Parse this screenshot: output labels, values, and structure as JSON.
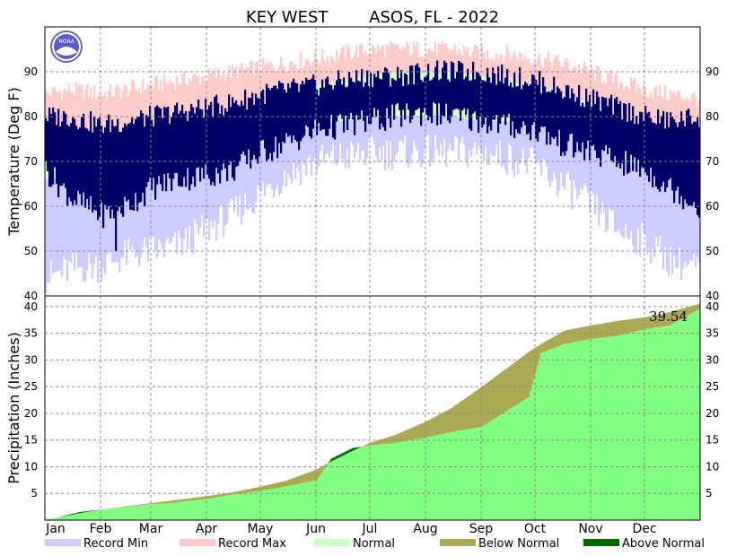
{
  "chart_data": {
    "type": "area",
    "title": "KEY WEST        ASOS, FL - 2022",
    "months": [
      "Jan",
      "Feb",
      "Mar",
      "Apr",
      "May",
      "Jun",
      "Jul",
      "Aug",
      "Sep",
      "Oct",
      "Nov",
      "Dec"
    ],
    "legend": {
      "record_min": "Record Min",
      "record_max": "Record Max",
      "normal": "Normal",
      "below_normal": "Below Normal",
      "above_normal": "Above Normal"
    },
    "legend_placement": "bottom",
    "grid": true,
    "colors": {
      "record_min": "#ccccff",
      "record_max": "#ffcccc",
      "normal": "#ccffcc",
      "observed": "#000066",
      "below_normal": "#aaaa55",
      "above_normal": "#006600",
      "precip_observed": "#80ff80"
    },
    "temperature": {
      "ylabel": "Temperature (Deg F)",
      "ylim": [
        40,
        100
      ],
      "yticks": [
        40,
        50,
        60,
        70,
        80,
        90
      ],
      "day_of_year": [
        1,
        15,
        32,
        46,
        60,
        74,
        91,
        105,
        121,
        135,
        152,
        166,
        182,
        196,
        213,
        227,
        244,
        258,
        274,
        288,
        305,
        319,
        335,
        349,
        365
      ],
      "record_max": [
        85,
        86,
        85,
        86,
        87,
        88,
        89,
        90,
        91,
        92,
        93,
        94,
        95,
        95,
        95,
        95,
        94,
        94,
        93,
        92,
        90,
        88,
        86,
        85,
        84
      ],
      "record_min": [
        44,
        46,
        47,
        49,
        50,
        51,
        55,
        58,
        63,
        67,
        70,
        71,
        72,
        72,
        72,
        72,
        72,
        71,
        69,
        65,
        60,
        55,
        52,
        48,
        46
      ],
      "normal_high": [
        75,
        76,
        76,
        77,
        77,
        78,
        80,
        81,
        83,
        85,
        87,
        88,
        89,
        90,
        90,
        90,
        89,
        88,
        87,
        85,
        83,
        80,
        78,
        76,
        75
      ],
      "normal_low": [
        66,
        66,
        66,
        67,
        67,
        69,
        70,
        72,
        74,
        76,
        78,
        79,
        80,
        80,
        80,
        80,
        79,
        79,
        78,
        77,
        74,
        71,
        69,
        67,
        66
      ],
      "observed_high": [
        80,
        80,
        78,
        79,
        80,
        81,
        82,
        83,
        85,
        86,
        87,
        88,
        89,
        89,
        90,
        90,
        90,
        89,
        88,
        86,
        84,
        82,
        80,
        79,
        80
      ],
      "observed_low": [
        68,
        62,
        58,
        60,
        64,
        66,
        67,
        68,
        72,
        74,
        77,
        78,
        79,
        80,
        81,
        80,
        79,
        78,
        77,
        74,
        72,
        70,
        68,
        64,
        60
      ],
      "observed_min": 50
    },
    "precipitation": {
      "ylabel": "Precipitation (Inches)",
      "ylim": [
        0,
        42
      ],
      "yticks": [
        5,
        10,
        15,
        20,
        25,
        30,
        35,
        40
      ],
      "annotation": "39.54",
      "day_of_year": [
        1,
        20,
        32,
        46,
        60,
        74,
        91,
        105,
        121,
        135,
        152,
        160,
        172,
        182,
        196,
        213,
        227,
        244,
        258,
        270,
        277,
        290,
        305,
        319,
        335,
        349,
        365
      ],
      "normal_cumulative": [
        0.1,
        1.3,
        2.0,
        2.6,
        3.2,
        3.8,
        4.5,
        5.2,
        6.3,
        7.4,
        9.5,
        11.0,
        13.0,
        14.5,
        16.0,
        18.5,
        21.0,
        25.0,
        28.5,
        31.5,
        33.0,
        35.5,
        36.5,
        37.3,
        38.0,
        39.0,
        40.5
      ],
      "observed_cumulative": [
        0.0,
        1.5,
        2.0,
        2.5,
        3.0,
        3.3,
        4.0,
        4.8,
        5.5,
        6.3,
        7.5,
        11.5,
        13.5,
        14.0,
        14.5,
        15.5,
        16.5,
        17.5,
        20.5,
        23.0,
        31.3,
        33.0,
        34.0,
        34.5,
        35.8,
        36.5,
        39.54
      ]
    }
  }
}
